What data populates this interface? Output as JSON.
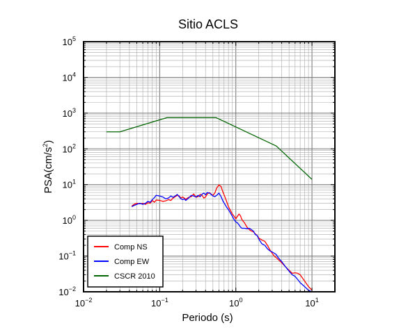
{
  "chart_data": {
    "type": "line",
    "title": "Sitio ACLS",
    "xlabel": "Periodo (s)",
    "ylabel": {
      "base": "PSA(cm/s",
      "sup": "2",
      "tail": ")"
    },
    "x_scale": "log",
    "y_scale": "log",
    "xlim": [
      0.01,
      20
    ],
    "ylim": [
      0.01,
      100000
    ],
    "grid": true,
    "x_ticks": [
      {
        "base": "10",
        "exp": "−2",
        "value": 0.01
      },
      {
        "base": "10",
        "exp": "−1",
        "value": 0.1
      },
      {
        "base": "10",
        "exp": "0",
        "value": 1
      },
      {
        "base": "10",
        "exp": "1",
        "value": 10
      }
    ],
    "y_ticks": [
      {
        "base": "10",
        "exp": "−2",
        "value": 0.01
      },
      {
        "base": "10",
        "exp": "−1",
        "value": 0.1
      },
      {
        "base": "10",
        "exp": "0",
        "value": 1
      },
      {
        "base": "10",
        "exp": "1",
        "value": 10
      },
      {
        "base": "10",
        "exp": "2",
        "value": 100
      },
      {
        "base": "10",
        "exp": "3",
        "value": 1000
      },
      {
        "base": "10",
        "exp": "4",
        "value": 10000
      },
      {
        "base": "10",
        "exp": "5",
        "value": 100000
      }
    ],
    "legend_position": "bottom-left",
    "series": [
      {
        "name": "Comp NS",
        "color": "#ff0000",
        "points": [
          [
            0.043,
            2.5
          ],
          [
            0.046,
            2.8
          ],
          [
            0.05,
            3.0
          ],
          [
            0.055,
            2.9
          ],
          [
            0.06,
            3.0
          ],
          [
            0.065,
            2.8
          ],
          [
            0.07,
            3.1
          ],
          [
            0.075,
            3.0
          ],
          [
            0.08,
            3.6
          ],
          [
            0.085,
            3.2
          ],
          [
            0.09,
            3.7
          ],
          [
            0.1,
            3.6
          ],
          [
            0.11,
            3.4
          ],
          [
            0.12,
            3.5
          ],
          [
            0.13,
            3.8
          ],
          [
            0.14,
            3.6
          ],
          [
            0.15,
            4.2
          ],
          [
            0.16,
            4.6
          ],
          [
            0.17,
            5.0
          ],
          [
            0.18,
            4.8
          ],
          [
            0.19,
            4.2
          ],
          [
            0.2,
            4.5
          ],
          [
            0.21,
            4.2
          ],
          [
            0.22,
            3.9
          ],
          [
            0.24,
            4.4
          ],
          [
            0.26,
            4.6
          ],
          [
            0.28,
            5.5
          ],
          [
            0.3,
            4.4
          ],
          [
            0.32,
            4.6
          ],
          [
            0.34,
            5.3
          ],
          [
            0.36,
            5.0
          ],
          [
            0.38,
            4.2
          ],
          [
            0.4,
            4.5
          ],
          [
            0.42,
            5.4
          ],
          [
            0.45,
            6.0
          ],
          [
            0.48,
            5.3
          ],
          [
            0.5,
            5.0
          ],
          [
            0.53,
            5.8
          ],
          [
            0.56,
            8.0
          ],
          [
            0.6,
            9.8
          ],
          [
            0.64,
            8.8
          ],
          [
            0.68,
            6.0
          ],
          [
            0.72,
            4.5
          ],
          [
            0.76,
            3.3
          ],
          [
            0.8,
            2.4
          ],
          [
            0.85,
            1.9
          ],
          [
            0.9,
            1.5
          ],
          [
            0.95,
            1.3
          ],
          [
            1.0,
            1.1
          ],
          [
            1.05,
            1.3
          ],
          [
            1.1,
            1.5
          ],
          [
            1.15,
            1.35
          ],
          [
            1.2,
            1.05
          ],
          [
            1.3,
            0.85
          ],
          [
            1.4,
            0.65
          ],
          [
            1.5,
            0.55
          ],
          [
            1.6,
            0.5
          ],
          [
            1.7,
            0.48
          ],
          [
            1.8,
            0.42
          ],
          [
            1.9,
            0.38
          ],
          [
            2.0,
            0.32
          ],
          [
            2.2,
            0.28
          ],
          [
            2.4,
            0.26
          ],
          [
            2.6,
            0.2
          ],
          [
            2.8,
            0.15
          ],
          [
            3.0,
            0.12
          ],
          [
            3.2,
            0.1
          ],
          [
            3.4,
            0.09
          ],
          [
            3.6,
            0.08
          ],
          [
            4.0,
            0.065
          ],
          [
            4.5,
            0.05
          ],
          [
            5.0,
            0.04
          ],
          [
            5.5,
            0.033
          ],
          [
            6.0,
            0.034
          ],
          [
            6.5,
            0.033
          ],
          [
            7.0,
            0.03
          ],
          [
            8.0,
            0.02
          ],
          [
            9.0,
            0.014
          ],
          [
            10.0,
            0.011
          ]
        ]
      },
      {
        "name": "Comp EW",
        "color": "#0000ff",
        "points": [
          [
            0.043,
            2.4
          ],
          [
            0.046,
            2.6
          ],
          [
            0.05,
            2.8
          ],
          [
            0.055,
            3.0
          ],
          [
            0.06,
            2.8
          ],
          [
            0.065,
            3.0
          ],
          [
            0.07,
            3.4
          ],
          [
            0.075,
            3.2
          ],
          [
            0.08,
            3.8
          ],
          [
            0.085,
            4.3
          ],
          [
            0.09,
            5.0
          ],
          [
            0.1,
            4.8
          ],
          [
            0.11,
            4.5
          ],
          [
            0.12,
            4.0
          ],
          [
            0.13,
            4.2
          ],
          [
            0.14,
            4.8
          ],
          [
            0.15,
            4.4
          ],
          [
            0.16,
            4.8
          ],
          [
            0.17,
            5.3
          ],
          [
            0.18,
            4.6
          ],
          [
            0.19,
            4.0
          ],
          [
            0.2,
            3.8
          ],
          [
            0.21,
            4.0
          ],
          [
            0.22,
            3.6
          ],
          [
            0.24,
            4.2
          ],
          [
            0.26,
            5.0
          ],
          [
            0.28,
            4.8
          ],
          [
            0.3,
            4.5
          ],
          [
            0.32,
            5.0
          ],
          [
            0.34,
            4.6
          ],
          [
            0.36,
            5.4
          ],
          [
            0.38,
            5.8
          ],
          [
            0.4,
            5.2
          ],
          [
            0.42,
            6.0
          ],
          [
            0.45,
            5.8
          ],
          [
            0.48,
            5.2
          ],
          [
            0.5,
            4.8
          ],
          [
            0.53,
            4.6
          ],
          [
            0.56,
            5.0
          ],
          [
            0.6,
            5.8
          ],
          [
            0.64,
            4.6
          ],
          [
            0.68,
            3.4
          ],
          [
            0.72,
            2.8
          ],
          [
            0.76,
            2.3
          ],
          [
            0.8,
            2.0
          ],
          [
            0.85,
            1.6
          ],
          [
            0.9,
            1.3
          ],
          [
            0.95,
            1.05
          ],
          [
            1.0,
            0.9
          ],
          [
            1.05,
            0.85
          ],
          [
            1.1,
            0.75
          ],
          [
            1.15,
            0.65
          ],
          [
            1.2,
            0.6
          ],
          [
            1.3,
            0.6
          ],
          [
            1.4,
            0.58
          ],
          [
            1.5,
            0.6
          ],
          [
            1.6,
            0.55
          ],
          [
            1.7,
            0.5
          ],
          [
            1.8,
            0.4
          ],
          [
            1.9,
            0.38
          ],
          [
            2.0,
            0.3
          ],
          [
            2.2,
            0.22
          ],
          [
            2.4,
            0.2
          ],
          [
            2.6,
            0.16
          ],
          [
            2.8,
            0.14
          ],
          [
            3.0,
            0.13
          ],
          [
            3.2,
            0.12
          ],
          [
            3.4,
            0.11
          ],
          [
            3.6,
            0.09
          ],
          [
            4.0,
            0.07
          ],
          [
            4.5,
            0.05
          ],
          [
            5.0,
            0.038
          ],
          [
            5.5,
            0.03
          ],
          [
            6.0,
            0.027
          ],
          [
            6.5,
            0.022
          ],
          [
            7.0,
            0.018
          ],
          [
            8.0,
            0.014
          ],
          [
            9.0,
            0.011
          ],
          [
            10.0,
            0.01
          ]
        ]
      },
      {
        "name": "CSCR 2010",
        "color": "#006400",
        "points": [
          [
            0.02,
            300
          ],
          [
            0.03,
            300
          ],
          [
            0.125,
            750
          ],
          [
            0.55,
            750
          ],
          [
            3.4,
            120
          ],
          [
            10.0,
            14
          ]
        ]
      }
    ]
  }
}
